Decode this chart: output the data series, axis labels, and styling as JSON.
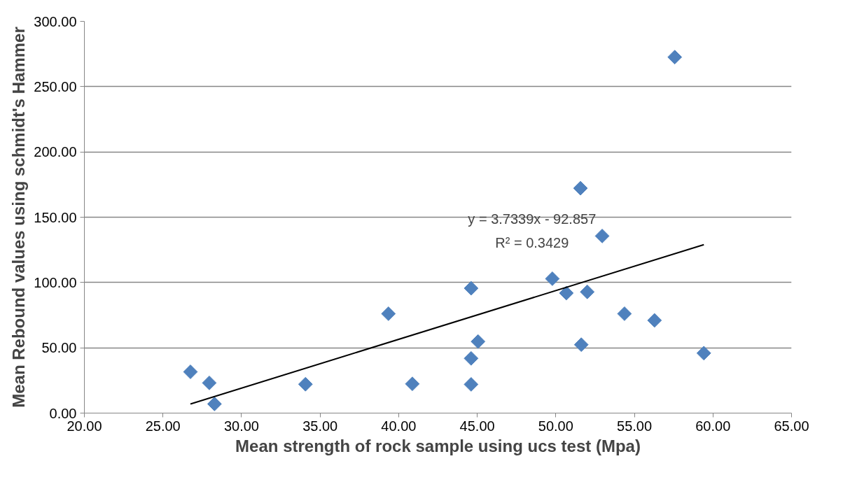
{
  "chart_data": {
    "type": "scatter",
    "xlabel": "Mean strength of rock sample using ucs test (Mpa)",
    "ylabel": "Mean Rebound values using schmidt's Hammer",
    "xlim": [
      20,
      65
    ],
    "xticks": [
      {
        "value": 20,
        "label": "20.00"
      },
      {
        "value": 25,
        "label": "25.00"
      },
      {
        "value": 30,
        "label": "30.00"
      },
      {
        "value": 35,
        "label": "35.00"
      },
      {
        "value": 40,
        "label": "40.00"
      },
      {
        "value": 45,
        "label": "45.00"
      },
      {
        "value": 50,
        "label": "50.00"
      },
      {
        "value": 55,
        "label": "55.00"
      },
      {
        "value": 60,
        "label": "60.00"
      },
      {
        "value": 65,
        "label": "65.00"
      }
    ],
    "ylim": [
      0,
      300
    ],
    "yticks": [
      {
        "value": 0,
        "label": "0.00"
      },
      {
        "value": 50,
        "label": "50.00"
      },
      {
        "value": 100,
        "label": "100.00"
      },
      {
        "value": 150,
        "label": "150.00"
      },
      {
        "value": 200,
        "label": "200.00"
      },
      {
        "value": 250,
        "label": "250.00"
      },
      {
        "value": 300,
        "label": "300.00"
      }
    ],
    "grid": "y",
    "marker": "diamond",
    "series": [
      {
        "color": "#4f81bd",
        "x": [
          26.75,
          27.95,
          28.28,
          34.07,
          39.35,
          40.87,
          44.61,
          45.05,
          44.61,
          44.61,
          49.78,
          50.67,
          52.0,
          51.62,
          51.57,
          52.95,
          54.37,
          56.28,
          59.42,
          57.57
        ],
        "values": [
          31.6,
          23.1,
          7.0,
          22.1,
          76.1,
          22.4,
          95.6,
          54.8,
          41.9,
          22.0,
          102.9,
          91.9,
          92.8,
          52.4,
          172.2,
          135.6,
          76.1,
          71.0,
          45.9,
          272.6
        ]
      },
      {
        "type": "line",
        "color": "#000000",
        "marker": "none",
        "x": [
          26.75,
          59.42
        ],
        "values": [
          7.0,
          129.0
        ]
      }
    ],
    "annotations": [
      "y = 3.7339x - 92.857",
      "R² = 0.3429"
    ]
  }
}
